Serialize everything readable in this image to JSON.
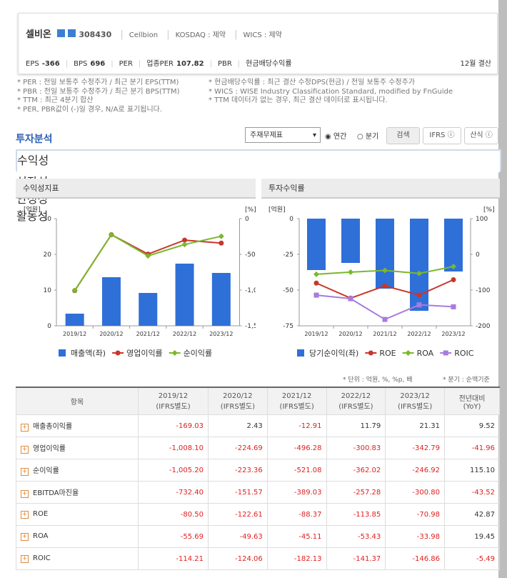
{
  "header": {
    "name": "셀비온",
    "code": "308430",
    "eng_name": "Cellbion",
    "market": "KOSDAQ : 제약",
    "wics": "WICS : 제약",
    "metrics": [
      {
        "label": "EPS",
        "value": "-366"
      },
      {
        "label": "BPS",
        "value": "696"
      },
      {
        "label": "PER"
      },
      {
        "label": "업종PER",
        "value": "107.82"
      },
      {
        "label": "PBR"
      },
      {
        "label": "현금배당수익률"
      }
    ],
    "fiscal": "12월 결산"
  },
  "notes_left": [
    "* PER : 전일 보통주 수정주가 / 최근 분기 EPS(TTM)",
    "* PBR : 전일 보통주 수정주가 / 최근 분기 BPS(TTM)",
    "* TTM : 최근 4분기 합산",
    "* PER, PBR값이 (-)일 경우, N/A로 표기됩니다."
  ],
  "notes_right": [
    "* 현금배당수익률 : 최근 결산 수정DPS(현금) / 전일 보통주 수정주가",
    "* WICS : WISE Industry Classification Standard, modified by FnGuide",
    "* TTM 데이터가 없는 경우, 최근 결산 데이터로 표시됩니다."
  ],
  "section": {
    "title": "투자분석",
    "select": "주재무제표",
    "radios": [
      "연간",
      "분기"
    ],
    "buttons": [
      "검색",
      "IFRS",
      "산식"
    ]
  },
  "tabs": [
    "수익성",
    "성장성",
    "안정성",
    "활동성"
  ],
  "chart_data": [
    {
      "type": "bar",
      "title": "수익성지표",
      "y_label": "[억원]",
      "y2_label": "[%]",
      "categories": [
        "2019/12",
        "2020/12",
        "2021/12",
        "2022/12",
        "2023/12"
      ],
      "series": [
        {
          "name": "매출액(좌)",
          "type": "bar",
          "color": "#2f6fd8",
          "values": [
            3.4,
            13.6,
            9.2,
            17.4,
            14.8
          ]
        },
        {
          "name": "영업이익률",
          "type": "line",
          "marker": "circle",
          "axis": "y2",
          "color": "#c8372b",
          "values": [
            -1008.1,
            -224.69,
            -496.28,
            -300.83,
            -342.79
          ]
        },
        {
          "name": "순이익률",
          "type": "line",
          "marker": "diamond",
          "axis": "y2",
          "color": "#7ab82d",
          "values": [
            -1005.2,
            -223.36,
            -521.08,
            -362.02,
            -246.92
          ]
        }
      ],
      "ylim": [
        0,
        30
      ],
      "yticks": [
        0,
        10,
        20,
        30
      ],
      "y2lim": [
        -1500,
        0
      ],
      "y2ticks": [
        0,
        {
          "value": -500,
          "label": "-500"
        },
        {
          "value": -1000,
          "label": "-1,000"
        },
        {
          "value": -1500,
          "label": "-1,500"
        }
      ],
      "grid": false
    },
    {
      "type": "bar",
      "title": "투자수익률",
      "y_label": "[억원]",
      "y2_label": "[%]",
      "categories": [
        "2019/12",
        "2020/12",
        "2021/12",
        "2022/12",
        "2023/12"
      ],
      "series": [
        {
          "name": "당기순이익(좌)",
          "type": "bar",
          "color": "#2f6fd8",
          "values": [
            -36,
            -31,
            -49,
            -64.5,
            -37
          ]
        },
        {
          "name": "ROE",
          "type": "line",
          "marker": "circle",
          "axis": "y2",
          "color": "#c8372b",
          "values": [
            -80.5,
            -122.61,
            -88.37,
            -113.85,
            -70.98
          ]
        },
        {
          "name": "ROA",
          "type": "line",
          "marker": "diamond",
          "axis": "y2",
          "color": "#7ab82d",
          "values": [
            -55.69,
            -49.63,
            -45.11,
            -53.43,
            -33.98
          ]
        },
        {
          "name": "ROIC",
          "type": "line",
          "marker": "square",
          "axis": "y2",
          "color": "#a87be0",
          "values": [
            -114.21,
            -124.06,
            -182.13,
            -141.37,
            -146.86
          ]
        }
      ],
      "ylim": [
        -75,
        0
      ],
      "yticks": [
        0,
        -25,
        -50,
        -75
      ],
      "y2lim": [
        -200,
        100
      ],
      "y2ticks": [
        100,
        0,
        -100,
        -200
      ],
      "grid": false
    }
  ],
  "units_note": "* 단위 : 억원, %, %p, 배",
  "quarter_note": "* 분기 : 순액기준",
  "table": {
    "header": [
      {
        "label": "항목"
      },
      {
        "period": "2019/12",
        "basis": "(IFRS별도)"
      },
      {
        "period": "2020/12",
        "basis": "(IFRS별도)"
      },
      {
        "period": "2021/12",
        "basis": "(IFRS별도)"
      },
      {
        "period": "2022/12",
        "basis": "(IFRS별도)"
      },
      {
        "period": "2023/12",
        "basis": "(IFRS별도)"
      },
      {
        "period": "전년대비",
        "basis": "(YoY)"
      }
    ],
    "rows": [
      [
        "매출총이익률",
        "-169.03",
        "2.43",
        "-12.91",
        "11.79",
        "21.31",
        "9.52"
      ],
      [
        "영업이익률",
        "-1,008.10",
        "-224.69",
        "-496.28",
        "-300.83",
        "-342.79",
        "-41.96"
      ],
      [
        "순이익률",
        "-1,005.20",
        "-223.36",
        "-521.08",
        "-362.02",
        "-246.92",
        "115.10"
      ],
      [
        "EBITDA마진율",
        "-732.40",
        "-151.57",
        "-389.03",
        "-257.28",
        "-300.80",
        "-43.52"
      ],
      [
        "ROE",
        "-80.50",
        "-122.61",
        "-88.37",
        "-113.85",
        "-70.98",
        "42.87"
      ],
      [
        "ROA",
        "-55.69",
        "-49.63",
        "-45.11",
        "-53.43",
        "-33.98",
        "19.45"
      ],
      [
        "ROIC",
        "-114.21",
        "-124.06",
        "-182.13",
        "-141.37",
        "-146.86",
        "-5.49"
      ]
    ]
  }
}
